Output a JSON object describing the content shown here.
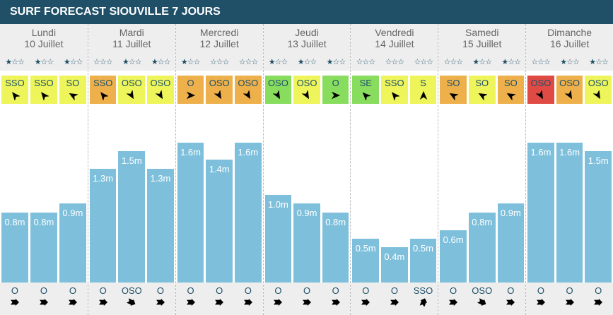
{
  "title": "SURF FORECAST SIOUVILLE 7 JOURS",
  "colors": {
    "yellow": "#edf55a",
    "orange": "#edb04b",
    "green": "#88dd5e",
    "red": "#e04a44"
  },
  "max_stars": 3,
  "days": [
    {
      "name": "Lundi",
      "date": "10 Juillet",
      "stars": [
        1,
        1,
        1
      ],
      "wind": [
        {
          "dir": "SSO",
          "color": "yellow"
        },
        {
          "dir": "SSO",
          "color": "yellow"
        },
        {
          "dir": "SO",
          "color": "yellow"
        }
      ],
      "waves": [
        {
          "h": 0.8,
          "label": "0.8m"
        },
        {
          "h": 0.8,
          "label": "0.8m"
        },
        {
          "h": 0.9,
          "label": "0.9m"
        }
      ],
      "swell": [
        "O",
        "O",
        "O"
      ]
    },
    {
      "name": "Mardi",
      "date": "11 Juillet",
      "stars": [
        0,
        1,
        1
      ],
      "wind": [
        {
          "dir": "SSO",
          "color": "orange"
        },
        {
          "dir": "OSO",
          "color": "yellow"
        },
        {
          "dir": "OSO",
          "color": "yellow"
        }
      ],
      "waves": [
        {
          "h": 1.3,
          "label": "1.3m"
        },
        {
          "h": 1.5,
          "label": "1.5m"
        },
        {
          "h": 1.3,
          "label": "1.3m"
        }
      ],
      "swell": [
        "O",
        "OSO",
        "O"
      ]
    },
    {
      "name": "Mercredi",
      "date": "12 Juillet",
      "stars": [
        1,
        0,
        0
      ],
      "wind": [
        {
          "dir": "O",
          "color": "orange"
        },
        {
          "dir": "OSO",
          "color": "orange"
        },
        {
          "dir": "OSO",
          "color": "orange"
        }
      ],
      "waves": [
        {
          "h": 1.6,
          "label": "1.6m"
        },
        {
          "h": 1.4,
          "label": "1.4m"
        },
        {
          "h": 1.6,
          "label": "1.6m"
        }
      ],
      "swell": [
        "O",
        "O",
        "O"
      ]
    },
    {
      "name": "Jeudi",
      "date": "13 Juillet",
      "stars": [
        1,
        1,
        1
      ],
      "wind": [
        {
          "dir": "OSO",
          "color": "green"
        },
        {
          "dir": "OSO",
          "color": "yellow"
        },
        {
          "dir": "O",
          "color": "green"
        }
      ],
      "waves": [
        {
          "h": 1.0,
          "label": "1.0m"
        },
        {
          "h": 0.9,
          "label": "0.9m"
        },
        {
          "h": 0.8,
          "label": "0.8m"
        }
      ],
      "swell": [
        "O",
        "O",
        "O"
      ]
    },
    {
      "name": "Vendredi",
      "date": "14 Juillet",
      "stars": [
        0,
        0,
        0
      ],
      "wind": [
        {
          "dir": "SE",
          "color": "green"
        },
        {
          "dir": "SSO",
          "color": "yellow"
        },
        {
          "dir": "S",
          "color": "yellow"
        }
      ],
      "waves": [
        {
          "h": 0.5,
          "label": "0.5m"
        },
        {
          "h": 0.4,
          "label": "0.4m"
        },
        {
          "h": 0.5,
          "label": "0.5m"
        }
      ],
      "swell": [
        "O",
        "O",
        "SSO"
      ]
    },
    {
      "name": "Samedi",
      "date": "15 Juillet",
      "stars": [
        0,
        1,
        1
      ],
      "wind": [
        {
          "dir": "SO",
          "color": "orange"
        },
        {
          "dir": "SO",
          "color": "yellow"
        },
        {
          "dir": "SO",
          "color": "orange"
        }
      ],
      "waves": [
        {
          "h": 0.6,
          "label": "0.6m"
        },
        {
          "h": 0.8,
          "label": "0.8m"
        },
        {
          "h": 0.9,
          "label": "0.9m"
        }
      ],
      "swell": [
        "O",
        "OSO",
        "O"
      ]
    },
    {
      "name": "Dimanche",
      "date": "16 Juillet",
      "stars": [
        0,
        1,
        1
      ],
      "wind": [
        {
          "dir": "OSO",
          "color": "red"
        },
        {
          "dir": "OSO",
          "color": "orange"
        },
        {
          "dir": "OSO",
          "color": "yellow"
        }
      ],
      "waves": [
        {
          "h": 1.6,
          "label": "1.6m"
        },
        {
          "h": 1.6,
          "label": "1.6m"
        },
        {
          "h": 1.5,
          "label": "1.5m"
        }
      ],
      "swell": [
        "O",
        "O",
        "O"
      ]
    }
  ]
}
